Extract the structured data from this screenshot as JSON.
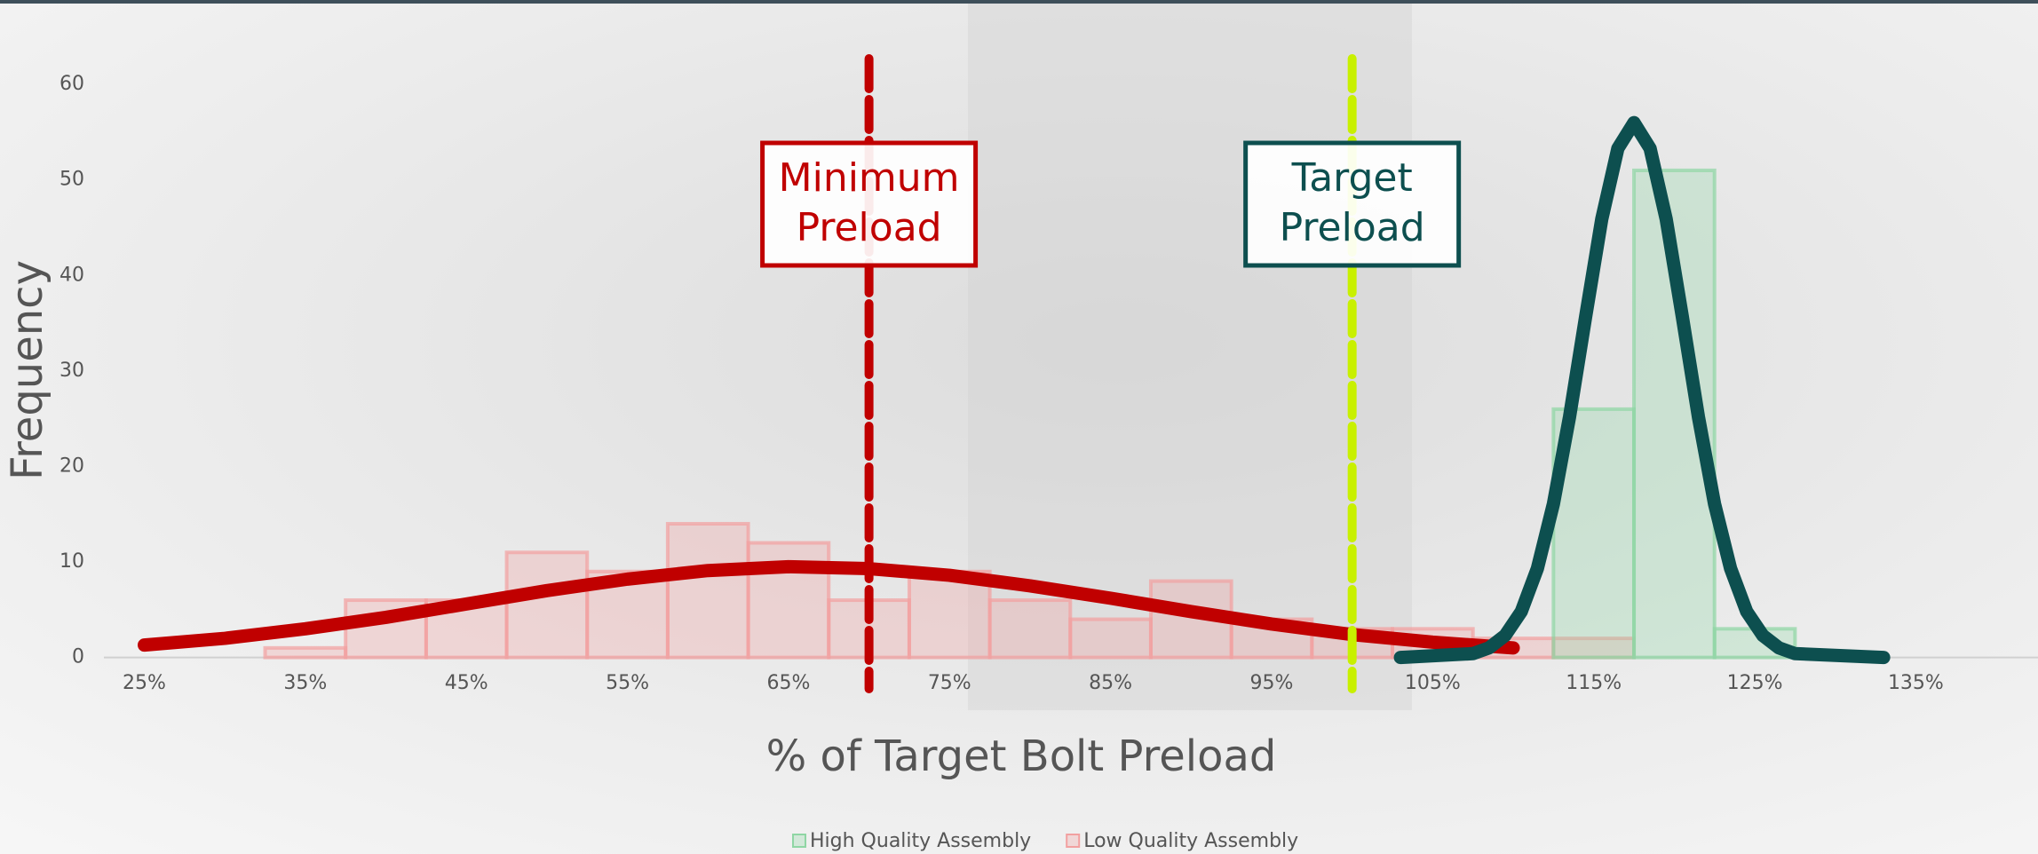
{
  "chart_data": {
    "type": "histogram",
    "xlabel": "% of Target Bolt Preload",
    "ylabel": "Frequency",
    "xlim": [
      25,
      135
    ],
    "ylim": [
      0,
      60
    ],
    "xticks": [
      {
        "value": 25,
        "label": "25%"
      },
      {
        "value": 35,
        "label": "35%"
      },
      {
        "value": 45,
        "label": "45%"
      },
      {
        "value": 55,
        "label": "55%"
      },
      {
        "value": 65,
        "label": "65%"
      },
      {
        "value": 75,
        "label": "75%"
      },
      {
        "value": 85,
        "label": "85%"
      },
      {
        "value": 95,
        "label": "95%"
      },
      {
        "value": 105,
        "label": "105%"
      },
      {
        "value": 115,
        "label": "115%"
      },
      {
        "value": 125,
        "label": "125%"
      },
      {
        "value": 135,
        "label": "135%"
      }
    ],
    "yticks": [
      0,
      10,
      20,
      30,
      40,
      50,
      60
    ],
    "legend": "bottom",
    "series": [
      {
        "name": "High Quality Assembly",
        "color": "#8fd6a4",
        "curve_color": "#0d4f4f",
        "bins": [
          112.5,
          117.5,
          122.5,
          127.5
        ],
        "counts": [
          26,
          51,
          3
        ],
        "curve": {
          "x": [
            103,
            107.5,
            108.5,
            109.5,
            110.5,
            111.5,
            112.5,
            113.5,
            114.5,
            115.5,
            116.5,
            117.5,
            118.5,
            119.5,
            120.5,
            121.5,
            122.5,
            123.5,
            124.5,
            125.5,
            126.5,
            127.5,
            133
          ],
          "y": [
            0,
            0.4,
            1.0,
            2.3,
            4.8,
            9.3,
            16.1,
            25.2,
            35.7,
            45.9,
            53.3,
            56,
            53.3,
            45.9,
            35.7,
            25.2,
            16.1,
            9.3,
            4.8,
            2.3,
            1.0,
            0.4,
            0
          ]
        }
      },
      {
        "name": "Low Quality Assembly",
        "color": "#f2a0a0",
        "curve_color": "#c00000",
        "bins": [
          32.5,
          37.5,
          42.5,
          47.5,
          52.5,
          57.5,
          62.5,
          67.5,
          72.5,
          77.5,
          82.5,
          87.5,
          92.5,
          97.5,
          102.5,
          107.5,
          112.5,
          117.5
        ],
        "counts": [
          1,
          6,
          6,
          11,
          9,
          14,
          12,
          6,
          9,
          6,
          4,
          8,
          4,
          3,
          3,
          2,
          2
        ],
        "curve": {
          "x": [
            25,
            30,
            35,
            40,
            45,
            50,
            55,
            60,
            65,
            70,
            75,
            80,
            85,
            90,
            95,
            100,
            105,
            110
          ],
          "y": [
            1.3,
            2.0,
            3.0,
            4.2,
            5.6,
            7.0,
            8.2,
            9.1,
            9.5,
            9.3,
            8.6,
            7.5,
            6.2,
            4.8,
            3.5,
            2.4,
            1.6,
            1.0
          ]
        }
      }
    ],
    "reference_lines": [
      {
        "x": 70,
        "color": "#c00000",
        "label_lines": [
          "Minimum",
          "Preload"
        ]
      },
      {
        "x": 100,
        "color": "#c8f000",
        "label_color": "#0d4f4f",
        "label_lines": [
          "Target",
          "Preload"
        ]
      }
    ]
  }
}
